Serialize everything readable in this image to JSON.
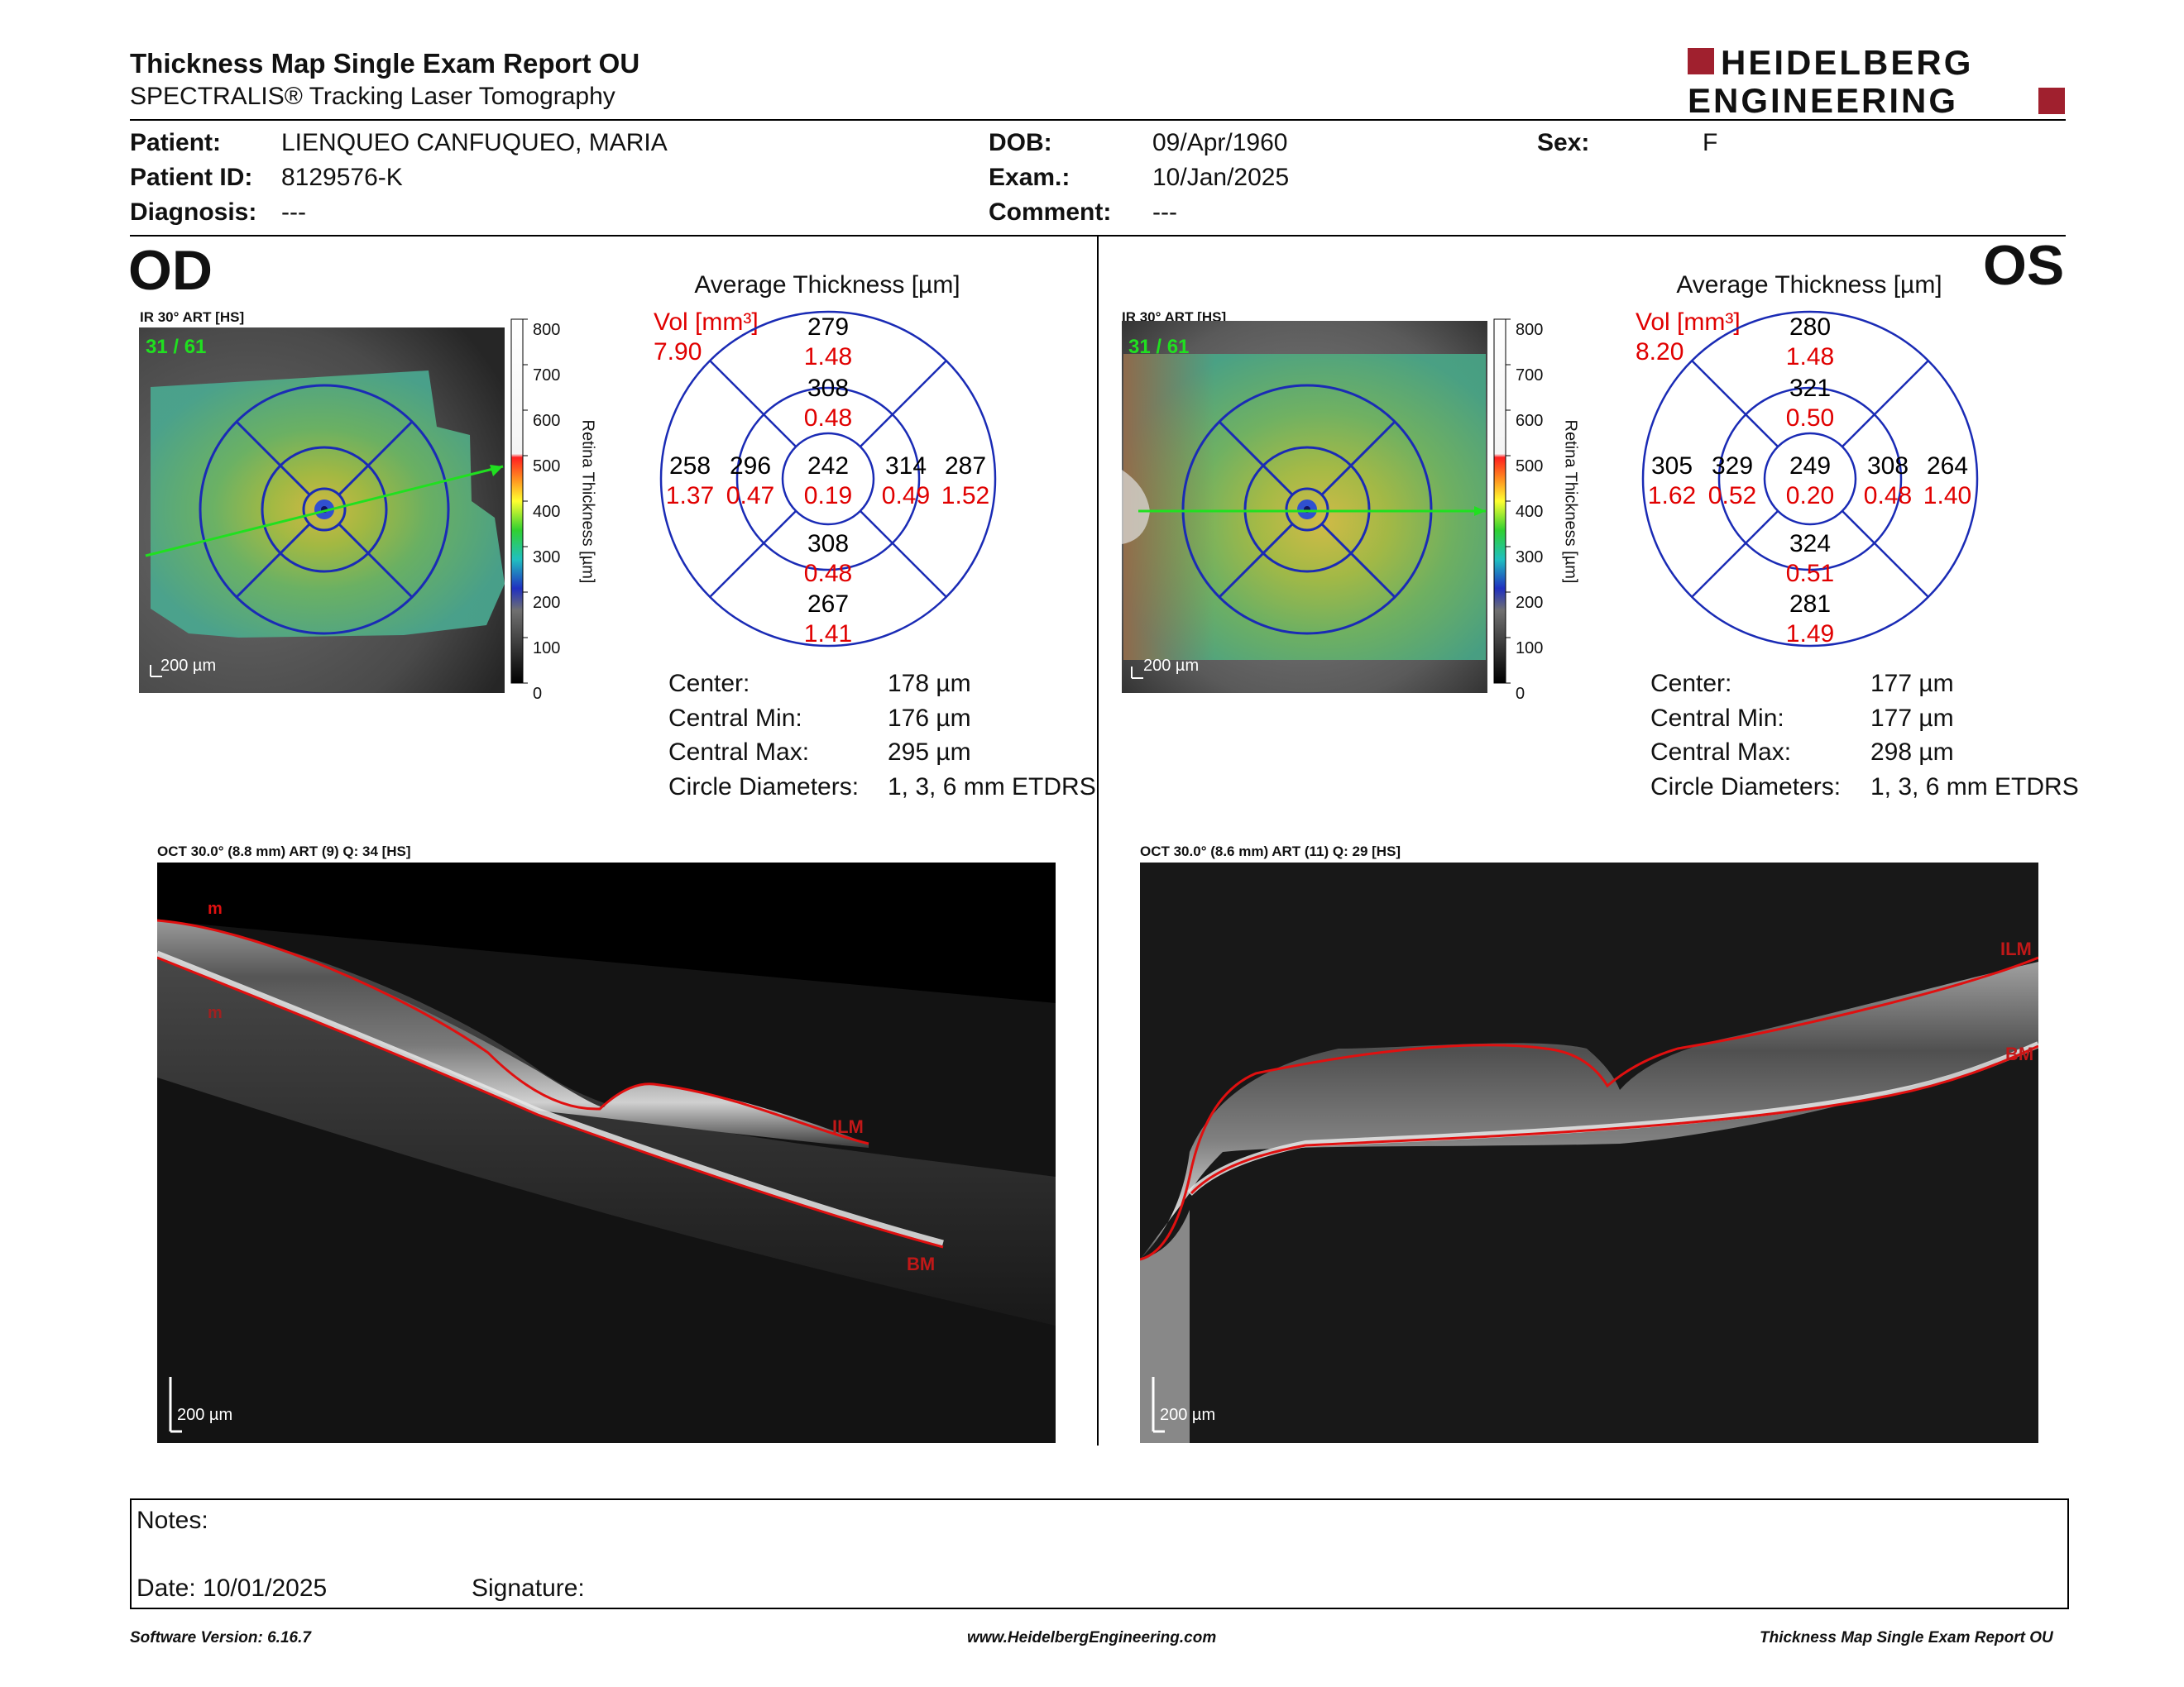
{
  "header": {
    "title": "Thickness Map Single Exam Report OU",
    "subtitle": "SPECTRALIS® Tracking Laser Tomography",
    "logo_line1": "HEIDELBERG",
    "logo_line2": "ENGINEERING"
  },
  "patient": {
    "patient_label": "Patient:",
    "patient_value": "LIENQUEO CANFUQUEO, MARIA",
    "id_label": "Patient ID:",
    "id_value": "8129576-K",
    "diagnosis_label": "Diagnosis:",
    "diagnosis_value": "---",
    "dob_label": "DOB:",
    "dob_value": "09/Apr/1960",
    "exam_label": "Exam.:",
    "exam_value": "10/Jan/2025",
    "comment_label": "Comment:",
    "comment_value": "---",
    "sex_label": "Sex:",
    "sex_value": "F"
  },
  "od": {
    "eye": "OD",
    "ir_caption": "IR 30° ART [HS]",
    "frame": "31 / 61",
    "scale": "200 µm",
    "avg_title": "Average Thickness [µm]",
    "vol_label": "Vol [mm³]",
    "vol_value": "7.90",
    "grid": {
      "center": {
        "t": "242",
        "v": "0.19"
      },
      "inner_top": {
        "t": "308",
        "v": "0.48"
      },
      "inner_left": {
        "t": "296",
        "v": "0.47"
      },
      "inner_right": {
        "t": "314",
        "v": "0.49"
      },
      "inner_bottom": {
        "t": "308",
        "v": "0.48"
      },
      "outer_top": {
        "t": "279",
        "v": "1.48"
      },
      "outer_left": {
        "t": "258",
        "v": "1.37"
      },
      "outer_right": {
        "t": "287",
        "v": "1.52"
      },
      "outer_bottom": {
        "t": "267",
        "v": "1.41"
      }
    },
    "stats": {
      "center_k": "Center:",
      "center_v": "178 µm",
      "min_k": "Central Min:",
      "min_v": "176 µm",
      "max_k": "Central Max:",
      "max_v": "295 µm",
      "circ_k": "Circle Diameters:",
      "circ_v": "1, 3, 6 mm ETDRS"
    },
    "oct_caption": "OCT 30.0° (8.8 mm) ART (9) Q: 34 [HS]",
    "oct_scale": "200 µm",
    "ilm": "ILM",
    "bm": "BM",
    "m1": "m",
    "m2": "m"
  },
  "os": {
    "eye": "OS",
    "ir_caption": "IR 30° ART [HS]",
    "frame": "31 / 61",
    "scale": "200 µm",
    "avg_title": "Average Thickness [µm]",
    "vol_label": "Vol [mm³]",
    "vol_value": "8.20",
    "grid": {
      "center": {
        "t": "249",
        "v": "0.20"
      },
      "inner_top": {
        "t": "321",
        "v": "0.50"
      },
      "inner_left": {
        "t": "329",
        "v": "0.52"
      },
      "inner_right": {
        "t": "308",
        "v": "0.48"
      },
      "inner_bottom": {
        "t": "324",
        "v": "0.51"
      },
      "outer_top": {
        "t": "280",
        "v": "1.48"
      },
      "outer_left": {
        "t": "305",
        "v": "1.62"
      },
      "outer_right": {
        "t": "264",
        "v": "1.40"
      },
      "outer_bottom": {
        "t": "281",
        "v": "1.49"
      }
    },
    "stats": {
      "center_k": "Center:",
      "center_v": "177 µm",
      "min_k": "Central Min:",
      "min_v": "177 µm",
      "max_k": "Central Max:",
      "max_v": "298 µm",
      "circ_k": "Circle Diameters:",
      "circ_v": "1, 3, 6 mm ETDRS"
    },
    "oct_caption": "OCT 30.0° (8.6 mm) ART (11) Q: 29 [HS]",
    "oct_scale": "200 µm",
    "ilm": "ILM",
    "bm": "BM"
  },
  "colorbar": {
    "ticks": [
      "800",
      "700",
      "600",
      "500",
      "400",
      "300",
      "200",
      "100",
      "0"
    ],
    "label": "Retina Thickness [µm]"
  },
  "notes": {
    "notes_label": "Notes:",
    "date_label": "Date: 10/01/2025",
    "signature_label": "Signature:"
  },
  "footer": {
    "left": "Software Version: 6.16.7",
    "center": "www.HeidelbergEngineering.com",
    "right": "Thickness Map Single Exam Report OU"
  },
  "colors": {
    "brand_red": "#a0202e",
    "grid_blue": "#1a2bb5",
    "vol_red": "#e00000",
    "ilm_red": "#e01010"
  }
}
